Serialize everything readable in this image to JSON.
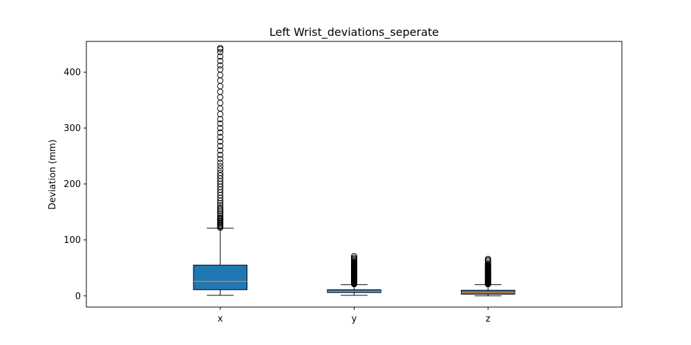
{
  "chart_data": {
    "type": "box",
    "title": "Left Wrist_deviations_seperate",
    "xlabel": "",
    "ylabel": "Deviation (mm)",
    "ylim": [
      -20,
      455
    ],
    "yticks": [
      0,
      100,
      200,
      300,
      400
    ],
    "categories": [
      "x",
      "y",
      "z"
    ],
    "colors": {
      "box_fill": "#1f77b4",
      "median": "#ff7f0e",
      "edge": "#000000"
    },
    "boxes": [
      {
        "label": "x",
        "whisker_low": 1,
        "q1": 11,
        "median": 26,
        "q3": 55,
        "whisker_high": 121,
        "outliers": [
          122,
          124,
          126,
          128,
          130,
          132,
          134,
          136,
          138,
          140,
          143,
          146,
          149,
          152,
          155,
          158,
          162,
          166,
          170,
          175,
          180,
          185,
          190,
          195,
          200,
          205,
          210,
          215,
          220,
          226,
          232,
          238,
          245,
          252,
          260,
          268,
          276,
          284,
          292,
          300,
          308,
          316,
          325,
          335,
          345,
          355,
          365,
          375,
          385,
          395,
          405,
          412,
          420,
          428,
          436,
          441,
          443
        ]
      },
      {
        "label": "y",
        "whisker_low": 1,
        "q1": 6,
        "median": 8,
        "q3": 11,
        "whisker_high": 20,
        "outliers": [
          21,
          22,
          23,
          24,
          25,
          26,
          27,
          28,
          29,
          30,
          31,
          32,
          33,
          34,
          35,
          36,
          37,
          38,
          39,
          40,
          41,
          42,
          43,
          44,
          45,
          46,
          47,
          48,
          49,
          50,
          51,
          52,
          53,
          54,
          55,
          56,
          57,
          58,
          59,
          60,
          62,
          64,
          66,
          68,
          71
        ]
      },
      {
        "label": "z",
        "whisker_low": 0,
        "q1": 3,
        "median": 6,
        "q3": 10,
        "whisker_high": 20,
        "outliers": [
          21,
          22,
          23,
          24,
          25,
          26,
          27,
          28,
          29,
          30,
          31,
          32,
          33,
          34,
          35,
          36,
          37,
          38,
          39,
          40,
          41,
          42,
          43,
          44,
          45,
          46,
          47,
          48,
          49,
          50,
          51,
          52,
          53,
          54,
          55,
          57,
          59,
          62,
          64,
          66
        ]
      }
    ]
  }
}
